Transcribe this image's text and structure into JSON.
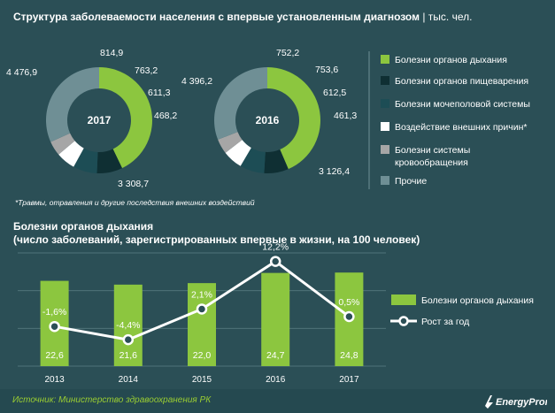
{
  "header": {
    "title": "Структура заболеваемости населения с впервые установленным диагнозом",
    "unit": "| тыс. чел."
  },
  "colors": {
    "resp": "#8cc63f",
    "digest": "#0f2f33",
    "uro": "#1d4d55",
    "external": "#ffffff",
    "circ": "#a6a6a6",
    "other": "#6f8f95",
    "background": "#2b4f56",
    "grid": "#4f7379",
    "source": "#9acd32"
  },
  "footnote": "*Травмы, отравления и другие последствия внешних воздействий",
  "section2": {
    "title_line1": "Болезни органов дыхания",
    "title_line2": "(число заболеваний, зарегистрированных впервые в жизни, на 100 человек)"
  },
  "footer": {
    "source": "Источник: Министерство здравоохранения РК",
    "logo_text": "EnergyProm"
  },
  "chart_data": [
    {
      "type": "pie",
      "variant": "donut",
      "center_label": "2017",
      "series": [
        {
          "name": "Болезни органов дыхания",
          "value": 4476.9,
          "label": "4 476,9",
          "color": "#8cc63f"
        },
        {
          "name": "Болезни органов пищеварения",
          "value": 814.9,
          "label": "814,9",
          "color": "#0f2f33"
        },
        {
          "name": "Болезни мочеполовой системы",
          "value": 763.2,
          "label": "763,2",
          "color": "#1d4d55"
        },
        {
          "name": "Воздействие внешних причин*",
          "value": 611.3,
          "label": "611,3",
          "color": "#ffffff"
        },
        {
          "name": "Болезни системы кровообращения",
          "value": 468.2,
          "label": "468,2",
          "color": "#a6a6a6"
        },
        {
          "name": "Прочие",
          "value": 3308.7,
          "label": "3 308,7",
          "color": "#6f8f95"
        }
      ]
    },
    {
      "type": "pie",
      "variant": "donut",
      "center_label": "2016",
      "series": [
        {
          "name": "Болезни органов дыхания",
          "value": 4396.2,
          "label": "4 396,2",
          "color": "#8cc63f"
        },
        {
          "name": "Болезни органов пищеварения",
          "value": 752.2,
          "label": "752,2",
          "color": "#0f2f33"
        },
        {
          "name": "Болезни мочеполовой системы",
          "value": 753.6,
          "label": "753,6",
          "color": "#1d4d55"
        },
        {
          "name": "Воздействие внешних причин*",
          "value": 612.5,
          "label": "612,5",
          "color": "#ffffff"
        },
        {
          "name": "Болезни системы кровообращения",
          "value": 461.3,
          "label": "461,3",
          "color": "#a6a6a6"
        },
        {
          "name": "Прочие",
          "value": 3126.4,
          "label": "3 126,4",
          "color": "#6f8f95"
        }
      ]
    },
    {
      "type": "bar",
      "categories": [
        "2013",
        "2014",
        "2015",
        "2016",
        "2017"
      ],
      "series": [
        {
          "name": "Болезни органов дыхания",
          "type": "bar",
          "values": [
            22.6,
            21.6,
            22.0,
            24.7,
            24.8
          ],
          "labels": [
            "22,6",
            "21,6",
            "22,0",
            "24,7",
            "24,8"
          ],
          "color": "#8cc63f"
        },
        {
          "name": "Рост за год",
          "type": "line",
          "values": [
            -1.6,
            -4.4,
            2.1,
            12.2,
            0.5
          ],
          "labels": [
            "-1,6%",
            "-4,4%",
            "2,1%",
            "12,2%",
            "0,5%"
          ],
          "color": "#ffffff"
        }
      ],
      "bar_ylim": [
        0,
        30
      ],
      "line_ylim": [
        -10,
        14
      ],
      "grid": true,
      "legend": "right"
    }
  ],
  "legend": {
    "items": [
      {
        "label": "Болезни органов дыхания",
        "color": "#8cc63f"
      },
      {
        "label": "Болезни органов пищеварения",
        "color": "#0f2f33"
      },
      {
        "label": "Болезни мочеполовой системы",
        "color": "#1d4d55"
      },
      {
        "label": "Воздействие внешних причин*",
        "color": "#ffffff"
      },
      {
        "label_line1": "Болезни системы",
        "label_line2": "кровообращения",
        "color": "#a6a6a6"
      },
      {
        "label": "Прочие",
        "color": "#6f8f95"
      }
    ]
  }
}
